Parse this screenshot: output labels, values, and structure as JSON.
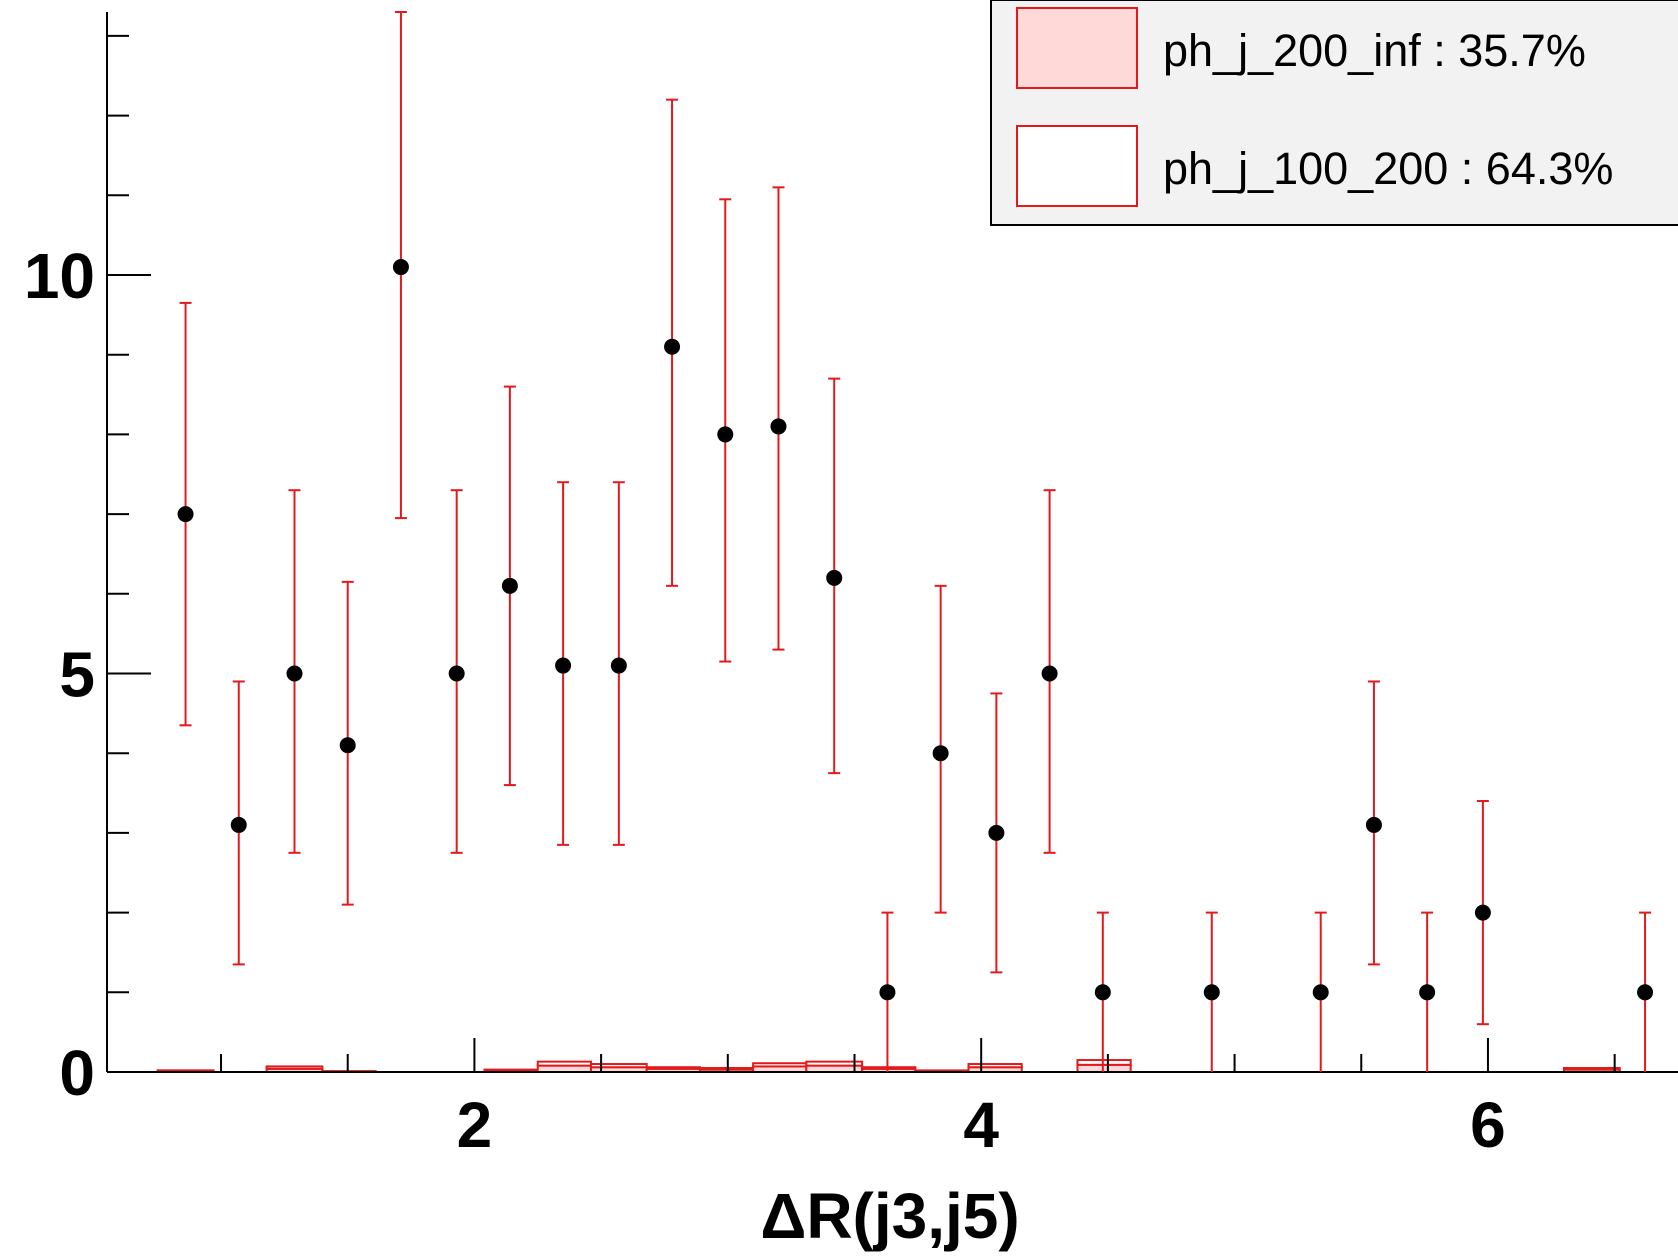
{
  "chart_data": {
    "type": "scatter",
    "xlabel": "ΔR(j3,j5)",
    "ylabel": "",
    "xlim": [
      0.55,
      6.75
    ],
    "ylim": [
      0,
      13.3
    ],
    "x_ticks": [
      {
        "value": 2,
        "label": "2"
      },
      {
        "value": 4,
        "label": "4"
      },
      {
        "value": 6,
        "label": "6"
      }
    ],
    "y_ticks": [
      {
        "value": 0,
        "label": "0"
      },
      {
        "value": 5,
        "label": "5"
      },
      {
        "value": 10,
        "label": "10"
      }
    ],
    "grid": false,
    "legend": {
      "placement": "top-right",
      "entries": [
        {
          "label": "ph_j_200_inf : 35.7%",
          "fill": "#ffd8d8",
          "stroke": "#e31a1c"
        },
        {
          "label": "ph_j_100_200 : 64.3%",
          "fill": "#ffffff",
          "stroke": "#e31a1c"
        }
      ]
    },
    "colors": {
      "points": "#000000",
      "errors": "#e31a1c",
      "hist": "#e31a1c"
    },
    "points": [
      {
        "x": 0.86,
        "y": 7.0,
        "lo": 4.35,
        "hi": 9.65
      },
      {
        "x": 1.07,
        "y": 3.1,
        "lo": 1.35,
        "hi": 4.9
      },
      {
        "x": 1.29,
        "y": 5.0,
        "lo": 2.75,
        "hi": 7.3
      },
      {
        "x": 1.5,
        "y": 4.1,
        "lo": 2.1,
        "hi": 6.15
      },
      {
        "x": 1.71,
        "y": 10.1,
        "lo": 6.95,
        "hi": 13.3
      },
      {
        "x": 1.93,
        "y": 5.0,
        "lo": 2.75,
        "hi": 7.3
      },
      {
        "x": 2.14,
        "y": 6.1,
        "lo": 3.6,
        "hi": 8.6
      },
      {
        "x": 2.35,
        "y": 5.1,
        "lo": 2.85,
        "hi": 7.4
      },
      {
        "x": 2.57,
        "y": 5.1,
        "lo": 2.85,
        "hi": 7.4
      },
      {
        "x": 2.78,
        "y": 9.1,
        "lo": 6.1,
        "hi": 12.2
      },
      {
        "x": 2.99,
        "y": 8.0,
        "lo": 5.15,
        "hi": 10.95
      },
      {
        "x": 3.2,
        "y": 8.1,
        "lo": 5.3,
        "hi": 11.1
      },
      {
        "x": 3.42,
        "y": 6.2,
        "lo": 3.75,
        "hi": 8.7
      },
      {
        "x": 3.63,
        "y": 1.0,
        "lo": 0,
        "hi": 2.0
      },
      {
        "x": 3.84,
        "y": 4.0,
        "lo": 2.0,
        "hi": 6.1
      },
      {
        "x": 4.06,
        "y": 3.0,
        "lo": 1.25,
        "hi": 4.75
      },
      {
        "x": 4.27,
        "y": 5.0,
        "lo": 2.75,
        "hi": 7.3
      },
      {
        "x": 4.48,
        "y": 1.0,
        "lo": 0,
        "hi": 2.0
      },
      {
        "x": 4.91,
        "y": 1.0,
        "lo": 0,
        "hi": 2.0
      },
      {
        "x": 5.34,
        "y": 1.0,
        "lo": 0,
        "hi": 2.0
      },
      {
        "x": 5.55,
        "y": 3.1,
        "lo": 1.35,
        "hi": 4.9
      },
      {
        "x": 5.76,
        "y": 1.0,
        "lo": 0,
        "hi": 2.0
      },
      {
        "x": 5.98,
        "y": 2.0,
        "lo": 0.6,
        "hi": 3.4
      },
      {
        "x": 6.62,
        "y": 1.0,
        "lo": 0,
        "hi": 2.0
      }
    ],
    "stack_bins": [
      {
        "x0": 0.75,
        "x1": 0.97,
        "a": 0.02,
        "b": 0.0
      },
      {
        "x0": 1.18,
        "x1": 1.4,
        "a": 0.04,
        "b": 0.03
      },
      {
        "x0": 1.4,
        "x1": 1.61,
        "a": 0.01,
        "b": 0.0
      },
      {
        "x0": 2.04,
        "x1": 2.25,
        "a": 0.02,
        "b": 0.01
      },
      {
        "x0": 2.25,
        "x1": 2.46,
        "a": 0.08,
        "b": 0.05
      },
      {
        "x0": 2.46,
        "x1": 2.68,
        "a": 0.06,
        "b": 0.04
      },
      {
        "x0": 2.68,
        "x1": 2.89,
        "a": 0.04,
        "b": 0.02
      },
      {
        "x0": 2.89,
        "x1": 3.1,
        "a": 0.03,
        "b": 0.02
      },
      {
        "x0": 3.1,
        "x1": 3.31,
        "a": 0.07,
        "b": 0.04
      },
      {
        "x0": 3.31,
        "x1": 3.53,
        "a": 0.08,
        "b": 0.05
      },
      {
        "x0": 3.53,
        "x1": 3.74,
        "a": 0.04,
        "b": 0.02
      },
      {
        "x0": 3.74,
        "x1": 3.95,
        "a": 0.01,
        "b": 0.01
      },
      {
        "x0": 3.95,
        "x1": 4.16,
        "a": 0.06,
        "b": 0.04
      },
      {
        "x0": 4.38,
        "x1": 4.59,
        "a": 0.09,
        "b": 0.06
      },
      {
        "x0": 6.3,
        "x1": 6.52,
        "a": 0.03,
        "b": 0.02
      }
    ]
  }
}
